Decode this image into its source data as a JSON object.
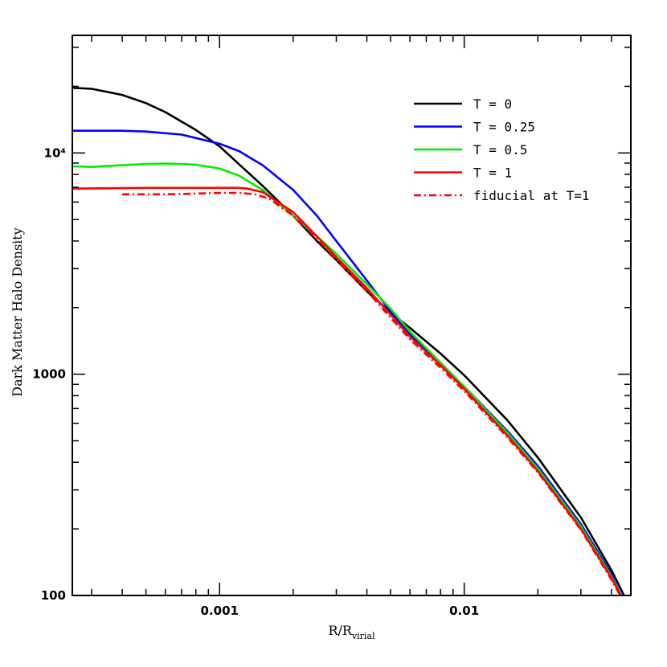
{
  "chart_data": {
    "type": "line",
    "title": "",
    "xlabel": "R/R",
    "xlabel_sub": "virial",
    "ylabel": "Dark Matter Halo Density",
    "xscale": "log",
    "yscale": "log",
    "xlim": [
      0.00025,
      0.048
    ],
    "ylim": [
      100,
      34000
    ],
    "x_ticks": [
      {
        "value": 0.001,
        "label": "0.001"
      },
      {
        "value": 0.01,
        "label": "0.01"
      }
    ],
    "y_ticks": [
      {
        "value": 100,
        "label": "100"
      },
      {
        "value": 1000,
        "label": "1000"
      },
      {
        "value": 10000,
        "label": "10⁴"
      }
    ],
    "legend_position": "top-right",
    "grid": false,
    "series": [
      {
        "name": "T = 0",
        "color": "#000000",
        "dash": "solid",
        "points": [
          [
            0.00025,
            19700
          ],
          [
            0.0003,
            19500
          ],
          [
            0.0004,
            18300
          ],
          [
            0.0005,
            16800
          ],
          [
            0.0006,
            15300
          ],
          [
            0.0008,
            12700
          ],
          [
            0.001,
            10700
          ],
          [
            0.0012,
            8900
          ],
          [
            0.0015,
            7100
          ],
          [
            0.002,
            5200
          ],
          [
            0.0025,
            4000
          ],
          [
            0.003,
            3280
          ],
          [
            0.004,
            2370
          ],
          [
            0.005,
            1900
          ],
          [
            0.006,
            1620
          ],
          [
            0.008,
            1240
          ],
          [
            0.01,
            990
          ],
          [
            0.015,
            620
          ],
          [
            0.02,
            420
          ],
          [
            0.03,
            225
          ],
          [
            0.04,
            130
          ],
          [
            0.045,
            100
          ]
        ]
      },
      {
        "name": "T = 0.25",
        "color": "#0000ff",
        "dash": "solid",
        "points": [
          [
            0.00025,
            12600
          ],
          [
            0.0004,
            12600
          ],
          [
            0.0005,
            12500
          ],
          [
            0.0007,
            12100
          ],
          [
            0.001,
            11000
          ],
          [
            0.0012,
            10200
          ],
          [
            0.0015,
            8800
          ],
          [
            0.002,
            6800
          ],
          [
            0.0025,
            5200
          ],
          [
            0.003,
            4000
          ],
          [
            0.004,
            2650
          ],
          [
            0.005,
            1920
          ],
          [
            0.006,
            1520
          ],
          [
            0.008,
            1100
          ],
          [
            0.01,
            880
          ],
          [
            0.015,
            555
          ],
          [
            0.02,
            385
          ],
          [
            0.03,
            210
          ],
          [
            0.04,
            125
          ],
          [
            0.045,
            98
          ]
        ]
      },
      {
        "name": "T = 0.5",
        "color": "#00ee00",
        "dash": "solid",
        "points": [
          [
            0.00025,
            8700
          ],
          [
            0.0003,
            8650
          ],
          [
            0.0004,
            8800
          ],
          [
            0.0005,
            8920
          ],
          [
            0.0006,
            8950
          ],
          [
            0.0007,
            8920
          ],
          [
            0.0008,
            8850
          ],
          [
            0.001,
            8500
          ],
          [
            0.0012,
            7900
          ],
          [
            0.0015,
            6800
          ],
          [
            0.002,
            5200
          ],
          [
            0.0025,
            4200
          ],
          [
            0.003,
            3500
          ],
          [
            0.004,
            2550
          ],
          [
            0.005,
            1980
          ],
          [
            0.006,
            1560
          ],
          [
            0.008,
            1130
          ],
          [
            0.01,
            880
          ],
          [
            0.015,
            545
          ],
          [
            0.02,
            375
          ],
          [
            0.03,
            205
          ],
          [
            0.04,
            122
          ],
          [
            0.045,
            96
          ]
        ]
      },
      {
        "name": "T = 1",
        "color": "#ff0000",
        "dash": "solid",
        "points": [
          [
            0.00025,
            6900
          ],
          [
            0.0005,
            6950
          ],
          [
            0.0008,
            6950
          ],
          [
            0.001,
            6950
          ],
          [
            0.0012,
            6950
          ],
          [
            0.0013,
            6900
          ],
          [
            0.0015,
            6650
          ],
          [
            0.002,
            5400
          ],
          [
            0.0025,
            4200
          ],
          [
            0.003,
            3380
          ],
          [
            0.004,
            2450
          ],
          [
            0.005,
            1860
          ],
          [
            0.006,
            1480
          ],
          [
            0.008,
            1100
          ],
          [
            0.01,
            860
          ],
          [
            0.015,
            530
          ],
          [
            0.02,
            365
          ],
          [
            0.03,
            200
          ],
          [
            0.04,
            120
          ],
          [
            0.045,
            94
          ]
        ]
      },
      {
        "name": "fiducial at T=1",
        "color": "#ff0000",
        "dash": "dashdot",
        "points": [
          [
            0.0004,
            6500
          ],
          [
            0.0006,
            6500
          ],
          [
            0.0008,
            6550
          ],
          [
            0.001,
            6600
          ],
          [
            0.0012,
            6600
          ],
          [
            0.0014,
            6500
          ],
          [
            0.0016,
            6200
          ],
          [
            0.002,
            5200
          ],
          [
            0.0025,
            4100
          ],
          [
            0.003,
            3300
          ],
          [
            0.004,
            2380
          ],
          [
            0.005,
            1800
          ],
          [
            0.006,
            1440
          ],
          [
            0.008,
            1070
          ],
          [
            0.01,
            840
          ],
          [
            0.015,
            520
          ],
          [
            0.02,
            360
          ],
          [
            0.03,
            198
          ],
          [
            0.04,
            118
          ],
          [
            0.045,
            93
          ]
        ]
      }
    ]
  }
}
